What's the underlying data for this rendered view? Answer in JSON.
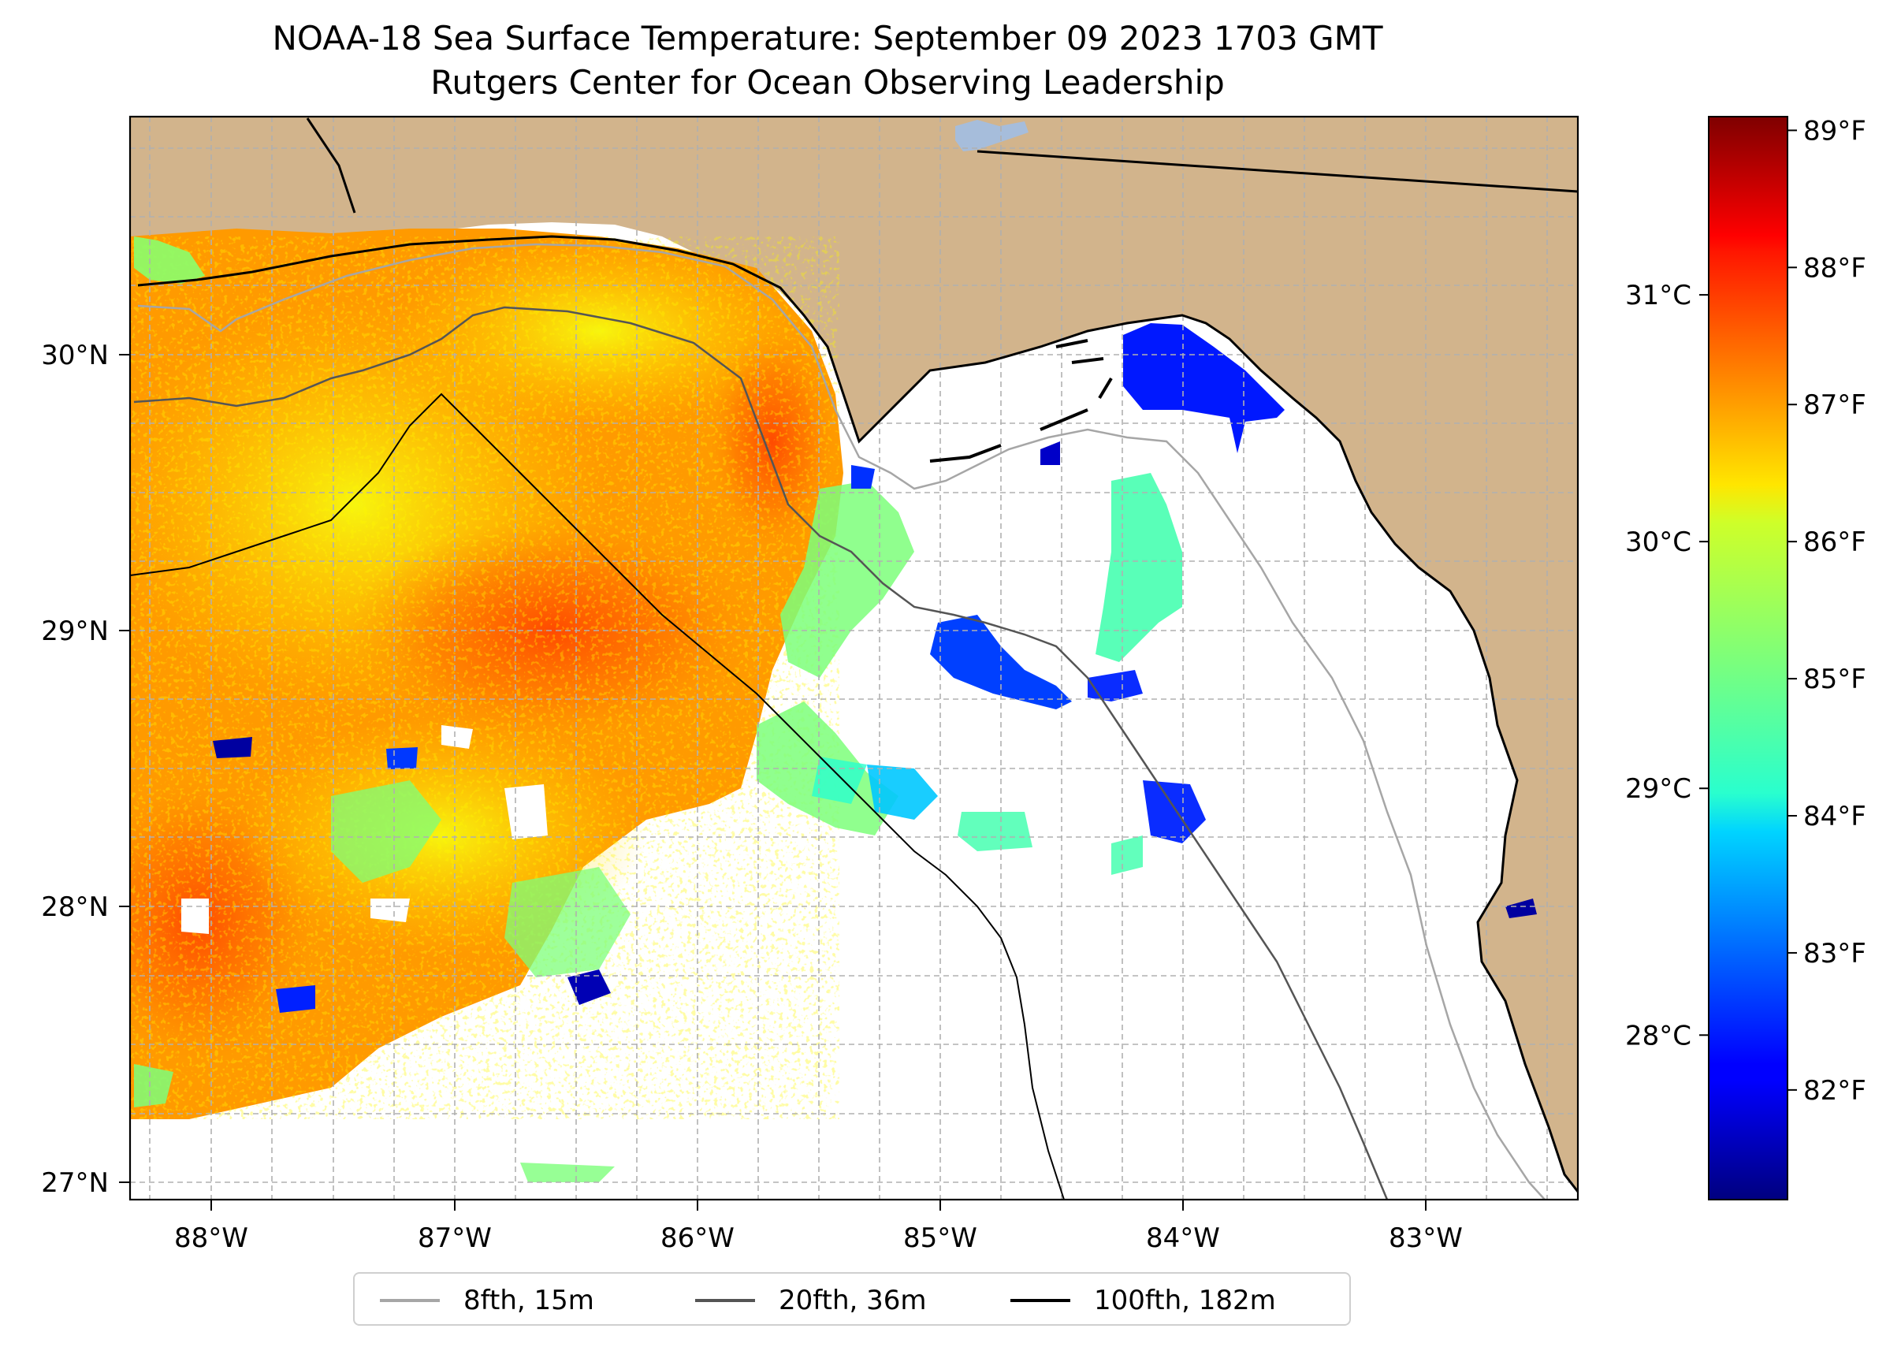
{
  "title": {
    "line1": "NOAA-18 Sea Surface Temperature: September 09 2023 1703 GMT",
    "line2": "Rutgers Center for Ocean Observing Leadership"
  },
  "map": {
    "lon_range": [
      -88.33,
      -82.37
    ],
    "lat_range": [
      26.94,
      30.85
    ],
    "x_ticks": [
      {
        "lon": -88,
        "label": "88°W"
      },
      {
        "lon": -87,
        "label": "87°W"
      },
      {
        "lon": -86,
        "label": "86°W"
      },
      {
        "lon": -85,
        "label": "85°W"
      },
      {
        "lon": -84,
        "label": "84°W"
      },
      {
        "lon": -83,
        "label": "83°W"
      }
    ],
    "y_ticks": [
      {
        "lat": 30,
        "label": "30°N"
      },
      {
        "lat": 29,
        "label": "29°N"
      },
      {
        "lat": 28,
        "label": "28°N"
      },
      {
        "lat": 27,
        "label": "27°N"
      }
    ],
    "colors": {
      "land": "#d2b48c",
      "ocean_nodata": "#ffffff",
      "lake": "#a6bddb",
      "grid": "#b0b0b0"
    }
  },
  "colorbar": {
    "colormap": "jet",
    "f_range": [
      81.2,
      89.1
    ],
    "f_ticks": [
      {
        "value": 82,
        "label": "82°F"
      },
      {
        "value": 83,
        "label": "83°F"
      },
      {
        "value": 84,
        "label": "84°F"
      },
      {
        "value": 85,
        "label": "85°F"
      },
      {
        "value": 86,
        "label": "86°F"
      },
      {
        "value": 87,
        "label": "87°F"
      },
      {
        "value": 88,
        "label": "88°F"
      },
      {
        "value": 89,
        "label": "89°F"
      }
    ],
    "c_ticks": [
      {
        "value": 28,
        "label": "28°C"
      },
      {
        "value": 29,
        "label": "29°C"
      },
      {
        "value": 30,
        "label": "30°C"
      },
      {
        "value": 31,
        "label": "31°C"
      }
    ]
  },
  "legend": {
    "items": [
      {
        "label": "8fth, 15m",
        "color": "#a6a6a6"
      },
      {
        "label": "20fth, 36m",
        "color": "#555555"
      },
      {
        "label": "100fth, 182m",
        "color": "#000000"
      }
    ]
  }
}
